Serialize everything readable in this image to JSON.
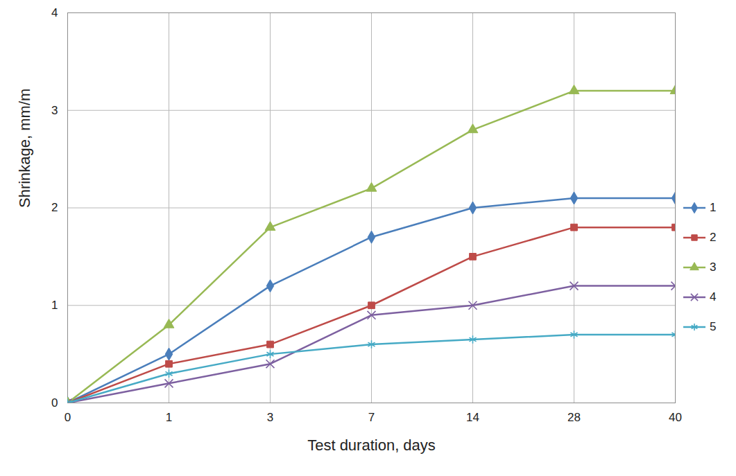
{
  "chart_data": {
    "type": "line",
    "x_label": "Test duration, days",
    "y_label": "Shrinkage, mm/m",
    "categories": [
      0,
      1,
      3,
      7,
      14,
      28,
      40
    ],
    "ylim": [
      0,
      4
    ],
    "yticks": [
      0,
      1,
      2,
      3,
      4
    ],
    "grid": true,
    "legend": "right",
    "series": [
      {
        "name": "1",
        "color": "#4a7ebb",
        "marker": "diamond",
        "values": [
          0,
          0.5,
          1.2,
          1.7,
          2.0,
          2.1,
          2.1
        ]
      },
      {
        "name": "2",
        "color": "#be4b48",
        "marker": "square",
        "values": [
          0,
          0.4,
          0.6,
          1.0,
          1.5,
          1.8,
          1.8
        ]
      },
      {
        "name": "3",
        "color": "#98b954",
        "marker": "triangle",
        "values": [
          0,
          0.8,
          1.8,
          2.2,
          2.8,
          3.2,
          3.2
        ]
      },
      {
        "name": "4",
        "color": "#7d60a0",
        "marker": "times",
        "values": [
          0,
          0.2,
          0.4,
          0.9,
          1.0,
          1.2,
          1.2
        ]
      },
      {
        "name": "5",
        "color": "#46aac5",
        "marker": "asterisk",
        "values": [
          0,
          0.3,
          0.5,
          0.6,
          0.65,
          0.7,
          0.7
        ]
      }
    ]
  }
}
